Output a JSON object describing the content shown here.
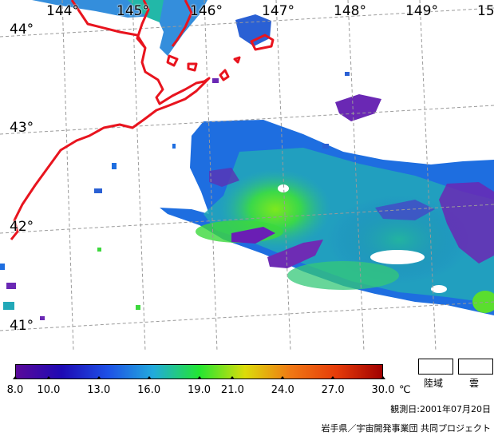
{
  "map": {
    "longitude_labels": [
      "144°",
      "145°",
      "146°",
      "147°",
      "148°",
      "149°",
      "15"
    ],
    "latitude_labels": [
      "44°",
      "43°",
      "42°",
      "41°"
    ],
    "coastline_color": "#e8141e",
    "graticule_color": "#9a9a9a"
  },
  "legend": {
    "scale_labels": [
      "8.0",
      "10.0",
      "13.0",
      "16.0",
      "19.0",
      "21.0",
      "24.0",
      "27.0",
      "30.0"
    ],
    "scale_values": [
      8.0,
      10.0,
      13.0,
      16.0,
      19.0,
      21.0,
      24.0,
      27.0,
      30.0
    ],
    "scale_min": 8.0,
    "scale_max": 30.0,
    "unit": "℃",
    "gradient_colors": [
      "#5a0a9a",
      "#1e0ab4",
      "#1e50e6",
      "#22aadc",
      "#22e632",
      "#dcdc0a",
      "#f07814",
      "#e63c0a",
      "#a00000"
    ],
    "land_label": "陸域",
    "cloud_label": "雲"
  },
  "footer": {
    "observation_date": "観測日:2001年07月20日",
    "credit": "岩手県／宇宙開発事業団 共同プロジェクト"
  }
}
